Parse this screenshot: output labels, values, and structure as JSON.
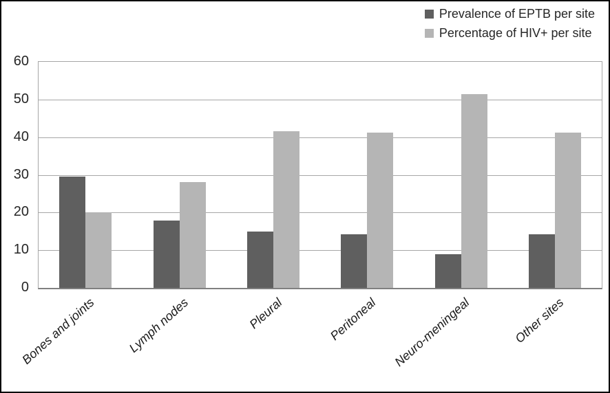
{
  "legend": {
    "items": [
      {
        "label": "Prevalence of EPTB per site",
        "color": "#5f5f5f"
      },
      {
        "label": "Percentage of HIV+ per site",
        "color": "#b5b5b5"
      }
    ]
  },
  "chart_data": {
    "type": "bar",
    "title": "",
    "xlabel": "",
    "ylabel": "",
    "categories": [
      "Bones and joints",
      "Lymph nodes",
      "Pleural",
      "Peritoneal",
      "Neuro-meningeal",
      "Other sites"
    ],
    "series": [
      {
        "name": "Prevalence of EPTB per site",
        "color": "#5f5f5f",
        "values": [
          29.5,
          17.8,
          15,
          14.2,
          9,
          14.2
        ]
      },
      {
        "name": "Percentage of HIV+ per site",
        "color": "#b5b5b5",
        "values": [
          20,
          28,
          41.5,
          41.2,
          51.5,
          41.2
        ]
      }
    ],
    "ylim": [
      0,
      60
    ],
    "yticks": [
      0,
      10,
      20,
      30,
      40,
      50,
      60
    ],
    "grid": true,
    "legend_position": "top-right",
    "colors": {
      "gridline": "#a6a6a6",
      "axis_line": "#808080",
      "tick_label": "#262626",
      "frame_border": "#000000",
      "background": "#ffffff"
    }
  }
}
